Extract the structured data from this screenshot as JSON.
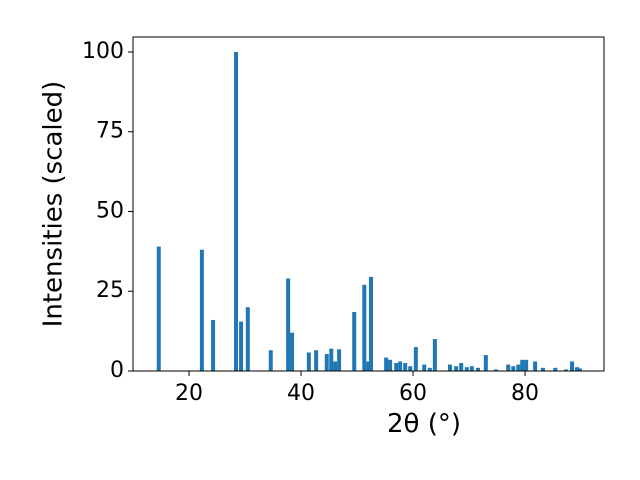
{
  "chart_data": {
    "type": "bar",
    "x_label": "2θ (°)",
    "y_label": "Intensities (scaled)",
    "color": "#1f77b4",
    "x": [
      14.6,
      22.3,
      24.3,
      28.4,
      29.3,
      30.5,
      34.6,
      37.7,
      38.4,
      41.4,
      42.7,
      44.6,
      45.4,
      46.1,
      46.8,
      49.5,
      51.3,
      52.0,
      52.5,
      55.2,
      55.9,
      57.0,
      57.7,
      58.6,
      59.5,
      60.5,
      62.0,
      63.0,
      63.9,
      66.6,
      67.7,
      68.6,
      69.6,
      70.5,
      71.6,
      73.0,
      74.8,
      77.0,
      77.9,
      78.8,
      79.5,
      80.2,
      81.8,
      83.2,
      85.4,
      87.3,
      88.4,
      89.3,
      89.8
    ],
    "values": [
      39,
      38,
      16,
      100,
      15.5,
      20,
      6.5,
      29,
      12,
      5.8,
      6.5,
      5.3,
      7,
      3,
      6.8,
      18.5,
      27,
      3,
      29.5,
      4.2,
      3.5,
      2.5,
      3,
      2.5,
      1.5,
      7.5,
      2,
      1,
      10,
      2,
      1.5,
      2.5,
      1.2,
      1.5,
      1,
      5,
      0.5,
      2,
      1.5,
      2,
      3.5,
      3.5,
      3,
      1,
      1,
      0.5,
      3,
      1.2,
      0.8
    ],
    "xlim": [
      10,
      94.1
    ],
    "ylim": [
      0,
      104.7
    ],
    "xticks": [
      20,
      40,
      60,
      80
    ],
    "yticks": [
      0,
      25,
      50,
      75,
      100
    ]
  }
}
